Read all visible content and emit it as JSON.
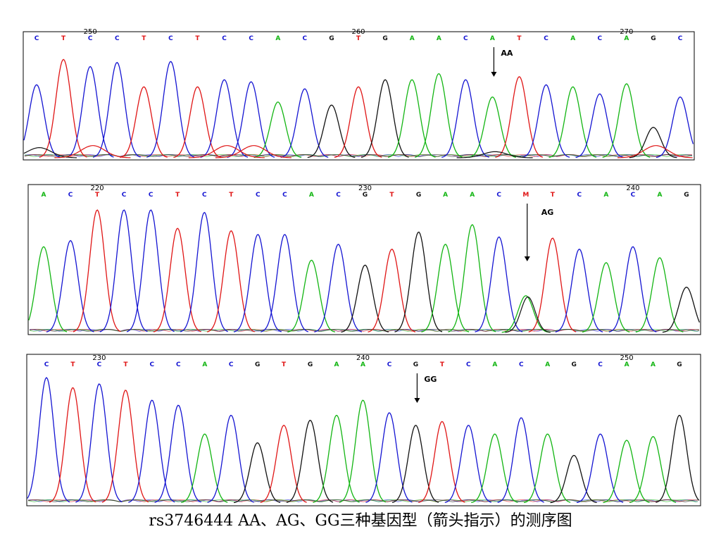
{
  "caption": "rs3746444 AA、AG、GG三种基因型（箭头指示）的测序图",
  "colors": {
    "A": "#12b512",
    "C": "#1414d2",
    "G": "#111111",
    "T": "#e01515",
    "M": "#e01515"
  },
  "chart_data": [
    {
      "type": "line",
      "genotype_label": "AA",
      "bases": [
        "C",
        "T",
        "C",
        "C",
        "T",
        "C",
        "T",
        "C",
        "C",
        "A",
        "C",
        "G",
        "T",
        "G",
        "A",
        "A",
        "C",
        "A",
        "T",
        "C",
        "A",
        "C",
        "A",
        "G",
        "C"
      ],
      "positions": [
        {
          "value": "250",
          "base_index": 2
        },
        {
          "value": "260",
          "base_index": 12
        },
        {
          "value": "270",
          "base_index": 22
        }
      ],
      "arrow_base_index": 17,
      "peak_heights": [
        0.72,
        0.97,
        0.9,
        0.94,
        0.7,
        0.95,
        0.7,
        0.77,
        0.75,
        0.55,
        0.68,
        0.52,
        0.7,
        0.77,
        0.77,
        0.83,
        0.77,
        0.6,
        0.8,
        0.72,
        0.7,
        0.63,
        0.73,
        0.3,
        0.6
      ],
      "secondary": [
        {
          "base": "G",
          "index": 0,
          "height": 0.1
        },
        {
          "base": "T",
          "index": 2,
          "height": 0.12
        },
        {
          "base": "T",
          "index": 7,
          "height": 0.12
        },
        {
          "base": "T",
          "index": 8,
          "height": 0.12
        },
        {
          "base": "G",
          "index": 17,
          "height": 0.06
        },
        {
          "base": "T",
          "index": 23,
          "height": 0.12
        }
      ]
    },
    {
      "type": "line",
      "genotype_label": "AG",
      "bases": [
        "A",
        "C",
        "T",
        "C",
        "C",
        "T",
        "C",
        "T",
        "C",
        "C",
        "A",
        "C",
        "G",
        "T",
        "G",
        "A",
        "A",
        "C",
        "M",
        "T",
        "C",
        "A",
        "C",
        "A",
        "G"
      ],
      "positions": [
        {
          "value": "220",
          "base_index": 2
        },
        {
          "value": "230",
          "base_index": 12
        },
        {
          "value": "240",
          "base_index": 22
        }
      ],
      "arrow_base_index": 18,
      "peak_heights": [
        0.7,
        0.75,
        1.0,
        1.0,
        1.0,
        0.85,
        0.98,
        0.83,
        0.8,
        0.8,
        0.59,
        0.72,
        0.55,
        0.68,
        0.82,
        0.72,
        0.88,
        0.78,
        0.3,
        0.77,
        0.68,
        0.57,
        0.7,
        0.61,
        0.37
      ],
      "secondary": [
        {
          "base": "G",
          "index": 18,
          "height": 0.29
        }
      ]
    },
    {
      "type": "line",
      "genotype_label": "GG",
      "bases": [
        "C",
        "T",
        "C",
        "T",
        "C",
        "C",
        "A",
        "C",
        "G",
        "T",
        "G",
        "A",
        "A",
        "C",
        "G",
        "T",
        "C",
        "A",
        "C",
        "A",
        "G",
        "C",
        "A",
        "A",
        "G"
      ],
      "positions": [
        {
          "value": "230",
          "base_index": 2
        },
        {
          "value": "240",
          "base_index": 12
        },
        {
          "value": "250",
          "base_index": 22
        }
      ],
      "arrow_base_index": 14,
      "peak_heights": [
        1.0,
        0.92,
        0.95,
        0.9,
        0.82,
        0.78,
        0.55,
        0.7,
        0.48,
        0.62,
        0.66,
        0.7,
        0.82,
        0.72,
        0.62,
        0.65,
        0.62,
        0.55,
        0.68,
        0.55,
        0.38,
        0.55,
        0.5,
        0.53,
        0.7
      ],
      "secondary": []
    }
  ]
}
